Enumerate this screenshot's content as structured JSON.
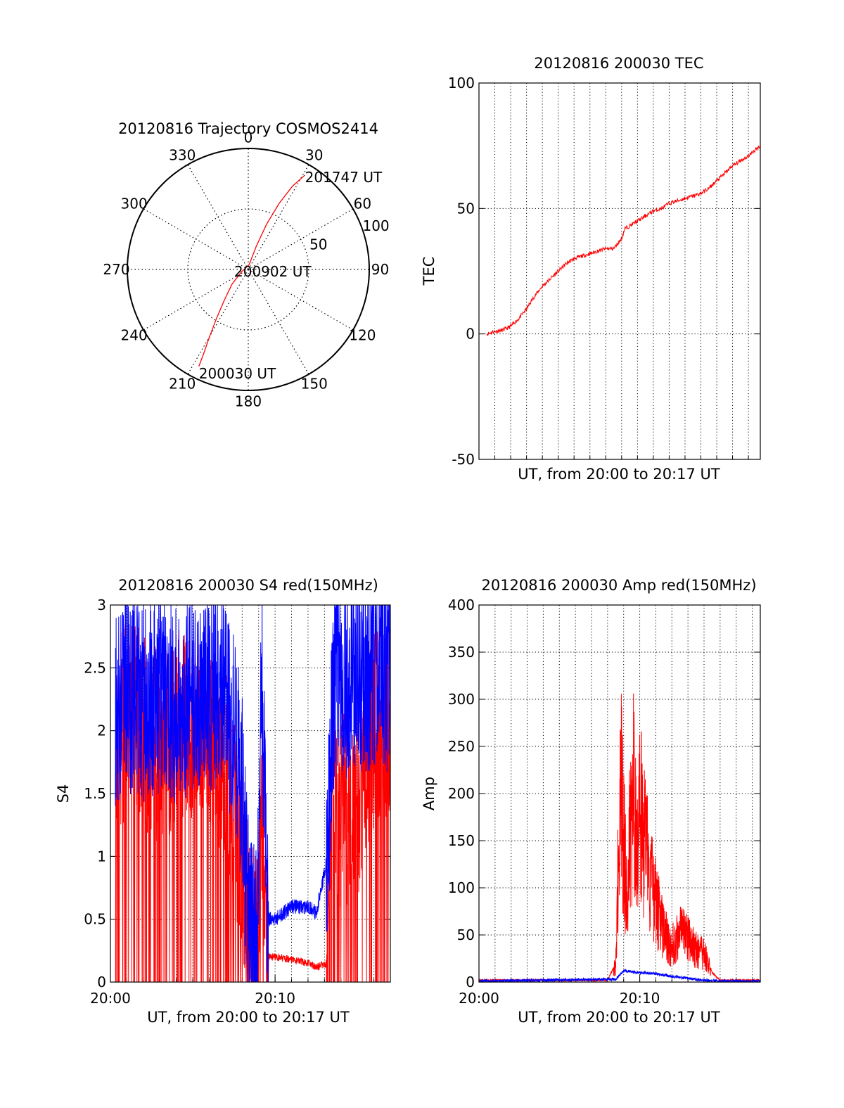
{
  "chart_data": [
    {
      "type": "polar",
      "title": "20120816 Trajectory COSMOS2414",
      "azimuth_labels": [
        "0",
        "30",
        "60",
        "90",
        "120",
        "150",
        "180",
        "210",
        "240",
        "270",
        "300",
        "330"
      ],
      "radial_ticks": [
        50,
        100
      ],
      "radial_labels": [
        "50",
        "100"
      ],
      "rmax": 100,
      "grid": true,
      "series": [
        {
          "color": "#ff0000",
          "points": [
            {
              "az": 207,
              "r": 90
            },
            {
              "az": 208,
              "r": 78
            },
            {
              "az": 210,
              "r": 64
            },
            {
              "az": 213,
              "r": 48
            },
            {
              "az": 218,
              "r": 32
            },
            {
              "az": 228,
              "r": 18
            },
            {
              "az": 250,
              "r": 6
            },
            {
              "az": 10,
              "r": 4
            },
            {
              "az": 19,
              "r": 20
            },
            {
              "az": 22,
              "r": 40
            },
            {
              "az": 25,
              "r": 60
            },
            {
              "az": 28,
              "r": 78
            },
            {
              "az": 31,
              "r": 91
            }
          ]
        }
      ],
      "annotations": [
        {
          "text": "201747 UT",
          "az": 31,
          "r": 91
        },
        {
          "text": "200902 UT",
          "az": 0,
          "r": 0
        },
        {
          "text": "200030 UT",
          "az": 207,
          "r": 90
        }
      ]
    },
    {
      "type": "line",
      "title": "20120816 200030 TEC",
      "xlabel": "UT, from 20:00 to 20:17 UT",
      "ylabel": "TEC",
      "xlim": [
        0,
        17.75
      ],
      "ylim": [
        -50,
        100
      ],
      "yticks": [
        -50,
        0,
        50,
        100
      ],
      "ytick_labels": [
        "-50",
        "0",
        "50",
        "100"
      ],
      "grid": true,
      "series": [
        {
          "color": "#ff0000",
          "x": [
            0.5,
            1.0,
            1.5,
            2.0,
            2.5,
            3.0,
            3.5,
            4.0,
            4.5,
            5.0,
            5.5,
            6.0,
            6.5,
            7.0,
            7.5,
            8.0,
            8.5,
            9.0,
            9.2,
            9.5,
            10.0,
            10.5,
            11.0,
            11.5,
            12.0,
            12.5,
            13.0,
            13.5,
            14.0,
            14.5,
            15.0,
            15.5,
            16.0,
            16.5,
            17.0,
            17.75
          ],
          "y": [
            0,
            1,
            1.5,
            3,
            6,
            10,
            15,
            19,
            22,
            25,
            28,
            30,
            31,
            32,
            33,
            34,
            34,
            38,
            42,
            43,
            45,
            47,
            49,
            50,
            52,
            53,
            54,
            55,
            56,
            58,
            61,
            64,
            67,
            69,
            71,
            75
          ]
        }
      ]
    },
    {
      "type": "line",
      "title": "20120816 200030 S4 red(150MHz)",
      "xlabel": "UT, from 20:00 to 20:17 UT",
      "ylabel": "S4",
      "xlim": [
        0,
        17
      ],
      "ylim": [
        0,
        3
      ],
      "xticks": [
        0,
        10
      ],
      "xtick_labels": [
        "20:00",
        "20:10"
      ],
      "yticks": [
        0,
        0.5,
        1,
        1.5,
        2,
        2.5,
        3
      ],
      "ytick_labels": [
        "0",
        "0.5",
        "1",
        "1.5",
        "2",
        "2.5",
        "3"
      ],
      "grid": true,
      "series": [
        {
          "color": "#ff0000",
          "x": [
            0.3,
            1,
            2,
            3,
            4,
            5,
            6,
            7,
            7.5,
            8,
            8.3,
            8.6,
            8.9,
            9.2,
            9.5,
            10,
            11,
            12,
            12.5,
            13.2,
            13.5,
            14,
            14.5,
            15,
            16,
            16.5,
            17
          ],
          "y": [
            1.9,
            2.1,
            2.0,
            1.9,
            2.0,
            2.1,
            2.0,
            1.7,
            1.3,
            1.0,
            0.6,
            0.3,
            0.2,
            1.5,
            0.2,
            0.2,
            0.18,
            0.15,
            0.12,
            0.15,
            1.3,
            1.3,
            1.4,
            1.4,
            2.0,
            2.0,
            2.1
          ]
        },
        {
          "color": "#0000ff",
          "x": [
            0.3,
            1,
            2,
            3,
            4,
            5,
            6,
            7,
            7.5,
            8,
            8.3,
            8.6,
            8.9,
            9.2,
            9.5,
            10,
            11,
            12,
            12.5,
            13.2,
            13.5,
            14,
            14.5,
            15,
            16,
            16.5,
            17
          ],
          "y": [
            2.2,
            2.3,
            2.2,
            2.3,
            2.2,
            2.3,
            2.3,
            2.2,
            2.0,
            1.5,
            0.7,
            0.4,
            0.3,
            2.5,
            0.5,
            0.5,
            0.6,
            0.6,
            0.55,
            1.0,
            2.3,
            2.4,
            2.4,
            2.5,
            2.4,
            2.5,
            2.4
          ]
        }
      ]
    },
    {
      "type": "line",
      "title": "20120816 200030 Amp red(150MHz)",
      "xlabel": "UT, from 20:00 to 20:17 UT",
      "ylabel": "Amp",
      "xlim": [
        0,
        17.5
      ],
      "ylim": [
        0,
        400
      ],
      "xticks": [
        0,
        10
      ],
      "xtick_labels": [
        "20:00",
        "20:10"
      ],
      "yticks": [
        0,
        50,
        100,
        150,
        200,
        250,
        300,
        350,
        400
      ],
      "ytick_labels": [
        "0",
        "50",
        "100",
        "150",
        "200",
        "250",
        "300",
        "350",
        "400"
      ],
      "grid": true,
      "series": [
        {
          "color": "#ff0000",
          "x": [
            0,
            8,
            8.5,
            8.8,
            9.0,
            9.2,
            9.4,
            9.6,
            9.8,
            10.0,
            10.3,
            10.6,
            11.0,
            11.5,
            12.0,
            12.5,
            13.0,
            13.5,
            14.0,
            14.5,
            15.0,
            17.5
          ],
          "y": [
            2,
            2,
            20,
            250,
            170,
            120,
            200,
            240,
            150,
            210,
            180,
            130,
            100,
            60,
            45,
            60,
            55,
            40,
            35,
            10,
            2,
            2
          ]
        },
        {
          "color": "#0000ff",
          "x": [
            0,
            8.5,
            9.0,
            10.0,
            11.0,
            12.0,
            13.0,
            14.0,
            15.0,
            17.5
          ],
          "y": [
            1,
            3,
            12,
            10,
            9,
            6,
            4,
            2,
            1,
            1
          ]
        }
      ]
    }
  ]
}
